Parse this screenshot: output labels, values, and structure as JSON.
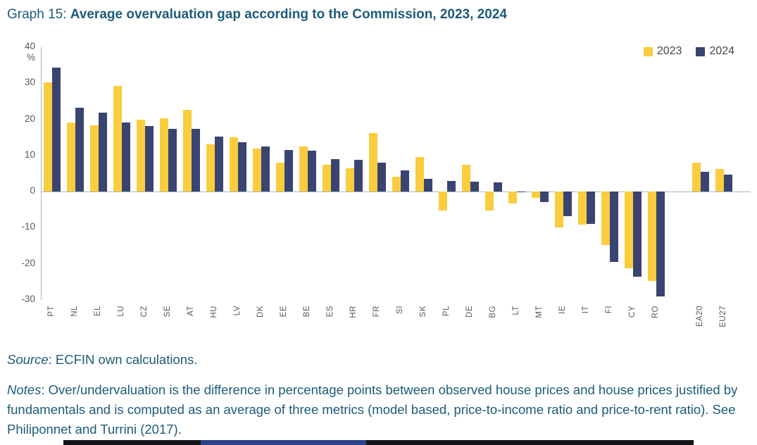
{
  "title": {
    "prefix": "Graph 15: ",
    "main": "Average overvaluation gap according to the Commission, 2023, 2024"
  },
  "legend": {
    "items": [
      {
        "label": "2023",
        "color": "#f9cd3e"
      },
      {
        "label": "2024",
        "color": "#3a4471"
      }
    ]
  },
  "source": {
    "label": "Source",
    "text": ": ECFIN own calculations."
  },
  "notes": {
    "label": "Notes",
    "text": ": Over/undervaluation is the difference in percentage points between observed house prices and house prices justified by fundamentals and is computed as an average of three metrics (model based, price-to-income ratio and price-to-rent ratio). See Philiponnet and Turrini (2017)."
  },
  "chart_data": {
    "type": "bar",
    "title": "Average overvaluation gap according to the Commission, 2023, 2024",
    "xlabel": "",
    "ylabel": "%",
    "ylim": [
      -30,
      40
    ],
    "yticks": [
      40,
      30,
      20,
      10,
      0,
      -10,
      -20,
      -30
    ],
    "grid": false,
    "legend_position": "top-right",
    "categories": [
      "PT",
      "NL",
      "EL",
      "LU",
      "CZ",
      "SE",
      "AT",
      "HU",
      "LV",
      "DK",
      "EE",
      "BE",
      "ES",
      "HR",
      "FR",
      "SI",
      "SK",
      "PL",
      "DE",
      "BG",
      "LT",
      "MT",
      "IE",
      "IT",
      "FI",
      "CY",
      "RO",
      "EA20",
      "EU27"
    ],
    "gap_before": "EA20",
    "series": [
      {
        "name": "2023",
        "color": "#f9cd3e",
        "values": [
          30.2,
          19.2,
          18.3,
          29.2,
          19.9,
          20.4,
          22.6,
          13.0,
          15.0,
          12.0,
          8.0,
          12.5,
          7.5,
          6.4,
          16.3,
          4.1,
          9.6,
          -5.2,
          7.5,
          -5.3,
          -3.3,
          -1.8,
          -9.9,
          -9.1,
          -14.7,
          -21.2,
          -24.8,
          8.0,
          6.3
        ]
      },
      {
        "name": "2024",
        "color": "#3a4471",
        "values": [
          34.3,
          23.3,
          21.9,
          19.1,
          18.2,
          17.3,
          17.3,
          15.3,
          13.7,
          12.5,
          11.5,
          11.3,
          9.0,
          8.8,
          8.1,
          5.8,
          3.5,
          2.9,
          2.7,
          2.5,
          -0.2,
          -2.9,
          -6.7,
          -8.9,
          -19.5,
          -23.5,
          -29.0,
          5.5,
          4.8
        ]
      }
    ]
  },
  "footer_bar": {
    "color": "#131518",
    "accent_color": "#2c4187"
  }
}
